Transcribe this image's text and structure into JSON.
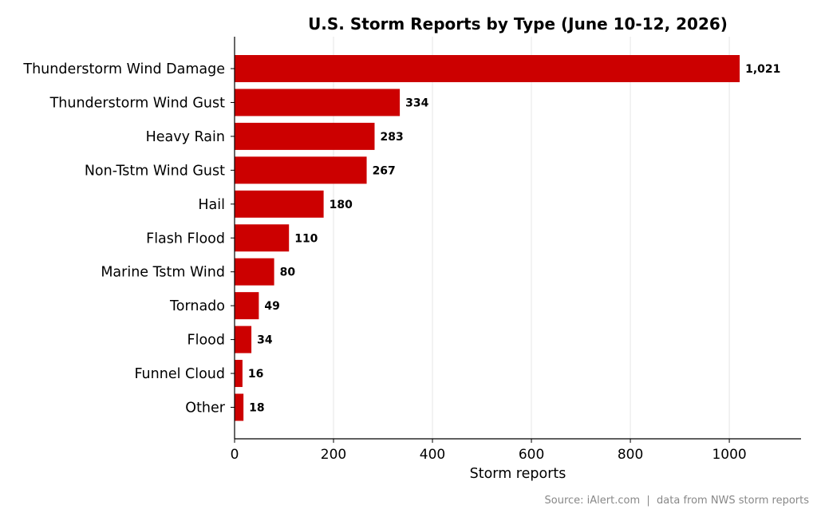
{
  "chart_data": {
    "type": "bar",
    "orientation": "horizontal",
    "title": "U.S. Storm Reports by Type  (June 10-12, 2026)",
    "xlabel": "Storm reports",
    "ylabel": "",
    "xlim": [
      0,
      1145
    ],
    "xticks": [
      0,
      200,
      400,
      600,
      800,
      1000
    ],
    "xtick_labels": [
      "0",
      "200",
      "400",
      "600",
      "800",
      "1000"
    ],
    "grid": "vertical",
    "categories": [
      "Thunderstorm Wind Damage",
      "Thunderstorm Wind Gust",
      "Heavy Rain",
      "Non-Tstm Wind Gust",
      "Hail",
      "Flash Flood",
      "Marine Tstm Wind",
      "Tornado",
      "Flood",
      "Funnel Cloud",
      "Other"
    ],
    "values": [
      1021,
      334,
      283,
      267,
      180,
      110,
      80,
      49,
      34,
      16,
      18
    ],
    "value_labels": [
      "1,021",
      "334",
      "283",
      "267",
      "180",
      "110",
      "80",
      "49",
      "34",
      "16",
      "18"
    ],
    "bar_color": "#cc0000"
  },
  "source_text": "Source: iAlert.com  |  data from NWS storm reports"
}
